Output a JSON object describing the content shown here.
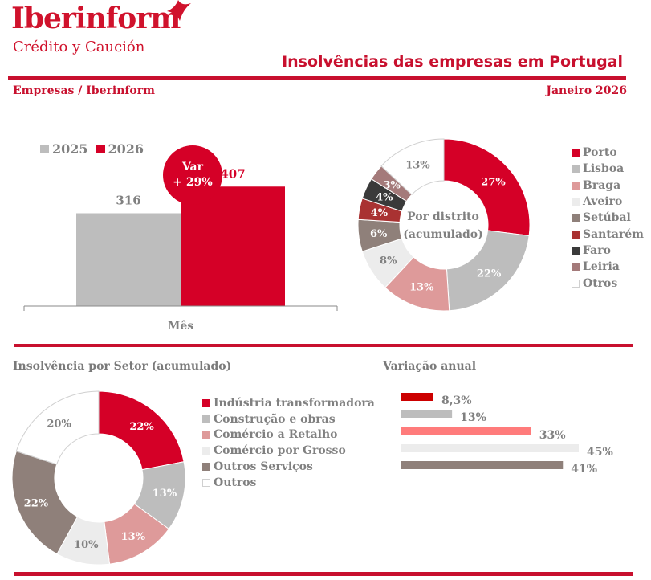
{
  "header": {
    "brand": "Iberinform",
    "brand_sub": "Crédito y Caución",
    "title": "Insolvências das empresas em Portugal",
    "subtitle_left": "Empresas / Iberinform",
    "subtitle_right": "Janeiro 2026",
    "accent_color": "#c8102e"
  },
  "chart_data": [
    {
      "type": "bar",
      "title": "",
      "categories": [
        "Mês"
      ],
      "series": [
        {
          "name": "2025",
          "values": [
            316
          ],
          "color": "#bdbdbd"
        },
        {
          "name": "2026",
          "values": [
            407
          ],
          "color": "#d50027"
        }
      ],
      "xlabel": "Mês",
      "ylabel": "",
      "ylim": [
        0,
        550
      ],
      "annotation": {
        "line1": "Var",
        "line2": "+ 29%"
      },
      "legend": "top-left"
    },
    {
      "type": "pie",
      "title": "Por distrito (acumulado)",
      "center_label": [
        "Por distrito",
        "(acumulado)"
      ],
      "labels": [
        "Porto",
        "Lisboa",
        "Braga",
        "Aveiro",
        "Setúbal",
        "Santarém",
        "Faro",
        "Leiria",
        "Otros"
      ],
      "values": [
        27,
        22,
        13,
        8,
        6,
        4,
        4,
        3,
        13
      ],
      "value_labels": [
        "27%",
        "22%",
        "13%",
        "8%",
        "6%",
        "4%",
        "4%",
        "3%",
        "13%"
      ],
      "colors": [
        "#d50027",
        "#bdbdbd",
        "#de9a9a",
        "#ececec",
        "#8f807a",
        "#a93232",
        "#3a3a3a",
        "#a47a7a",
        "#ffffff"
      ],
      "label_colors": [
        "#ffffff",
        "#ffffff",
        "#ffffff",
        "#808080",
        "#ffffff",
        "#ffffff",
        "#ffffff",
        "#ffffff",
        "#808080"
      ],
      "legend": "right"
    },
    {
      "type": "pie",
      "title": "Insolvência por Setor (acumulado)",
      "labels": [
        "Indústria transformadora",
        "Construção e obras",
        "Comércio a Retalho",
        "Comércio por Grosso",
        "Outros Serviços",
        "Outros"
      ],
      "values": [
        22,
        13,
        13,
        10,
        22,
        20
      ],
      "value_labels": [
        "22%",
        "13%",
        "13%",
        "10%",
        "22%",
        "20%"
      ],
      "colors": [
        "#d50027",
        "#bdbdbd",
        "#de9a9a",
        "#ececec",
        "#8f807a",
        "#ffffff"
      ],
      "label_colors": [
        "#ffffff",
        "#ffffff",
        "#ffffff",
        "#808080",
        "#ffffff",
        "#808080"
      ],
      "legend": "right"
    },
    {
      "type": "bar",
      "orientation": "horizontal",
      "title": "Variação anual",
      "categories": [
        "Indústria transformadora",
        "Construção e obras",
        "Comércio a Retalho",
        "Comércio por Grosso",
        "Outros Serviços"
      ],
      "values": [
        8.3,
        13,
        33,
        45,
        41
      ],
      "value_labels": [
        "8,3%",
        "13%",
        "33%",
        "45%",
        "41%"
      ],
      "colors": [
        "#cc0000",
        "#bdbdbd",
        "#ff7b7b",
        "#ececec",
        "#8f807a"
      ],
      "xlim": [
        0,
        45
      ]
    }
  ]
}
